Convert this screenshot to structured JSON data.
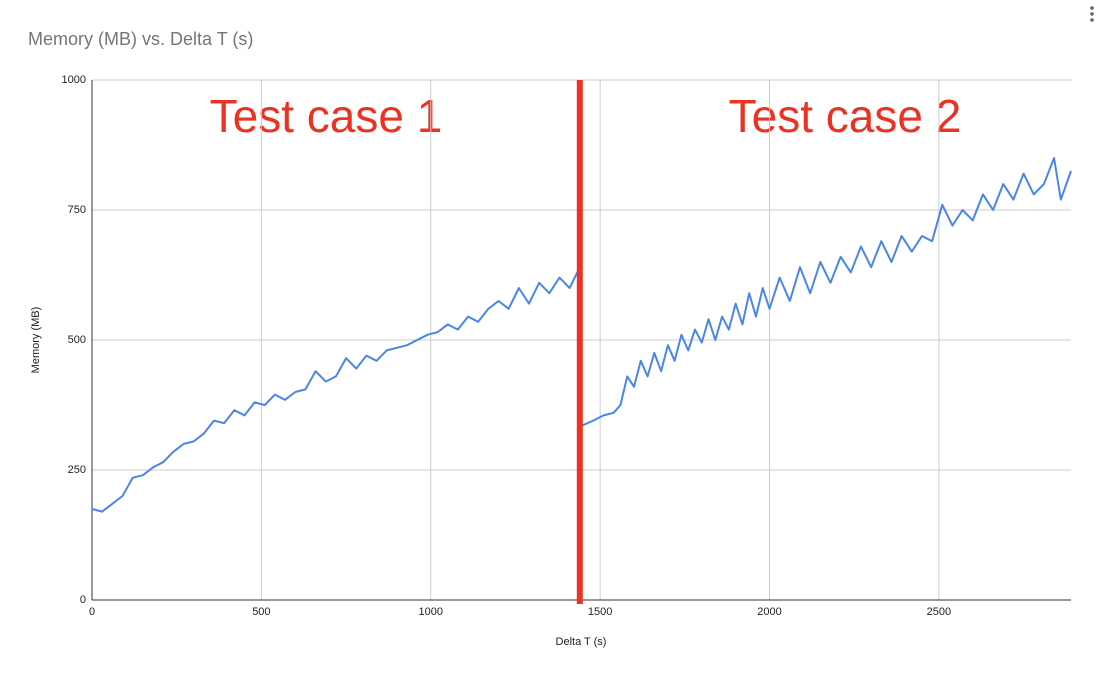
{
  "chart_data": {
    "type": "line",
    "title": "Memory (MB) vs. Delta T (s)",
    "x_label": "Delta T (s)",
    "y_label": "Memory (MB)",
    "color": "#4a86e8",
    "grid": true,
    "xlim": [
      0,
      2890
    ],
    "xticks": [
      0,
      500,
      1000,
      1500,
      2000,
      2500
    ],
    "ylim": [
      0,
      1000
    ],
    "yticks": [
      0,
      250,
      500,
      750,
      1000
    ],
    "annotations": [
      "Test case 1",
      "Test case 2"
    ],
    "divider": {
      "x": 1440,
      "color": "#ea3323"
    },
    "x": [
      0,
      30,
      60,
      90,
      120,
      150,
      180,
      210,
      240,
      270,
      300,
      330,
      360,
      390,
      420,
      450,
      480,
      510,
      540,
      570,
      600,
      630,
      660,
      690,
      720,
      750,
      780,
      810,
      840,
      870,
      900,
      930,
      960,
      990,
      1020,
      1050,
      1080,
      1110,
      1140,
      1170,
      1200,
      1230,
      1260,
      1290,
      1320,
      1350,
      1380,
      1410,
      1440,
      1445,
      1480,
      1510,
      1540,
      1560,
      1580,
      1600,
      1620,
      1640,
      1660,
      1680,
      1700,
      1720,
      1740,
      1760,
      1780,
      1800,
      1820,
      1840,
      1860,
      1880,
      1900,
      1920,
      1940,
      1960,
      1980,
      2000,
      2030,
      2060,
      2090,
      2120,
      2150,
      2180,
      2210,
      2240,
      2270,
      2300,
      2330,
      2360,
      2390,
      2420,
      2450,
      2480,
      2510,
      2540,
      2570,
      2600,
      2630,
      2660,
      2690,
      2720,
      2750,
      2780,
      2810,
      2840,
      2860,
      2890
    ],
    "values": [
      175,
      170,
      185,
      200,
      235,
      240,
      255,
      265,
      285,
      300,
      305,
      320,
      345,
      340,
      365,
      355,
      380,
      375,
      395,
      385,
      400,
      405,
      440,
      420,
      430,
      465,
      445,
      470,
      460,
      480,
      485,
      490,
      500,
      510,
      515,
      530,
      520,
      545,
      535,
      560,
      575,
      560,
      600,
      570,
      610,
      590,
      620,
      600,
      640,
      335,
      345,
      355,
      360,
      375,
      430,
      410,
      460,
      430,
      475,
      440,
      490,
      460,
      510,
      480,
      520,
      495,
      540,
      500,
      545,
      520,
      570,
      530,
      590,
      545,
      600,
      560,
      620,
      575,
      640,
      590,
      650,
      610,
      660,
      630,
      680,
      640,
      690,
      650,
      700,
      670,
      700,
      690,
      760,
      720,
      750,
      730,
      780,
      750,
      800,
      770,
      820,
      780,
      800,
      850,
      770,
      825
    ]
  }
}
